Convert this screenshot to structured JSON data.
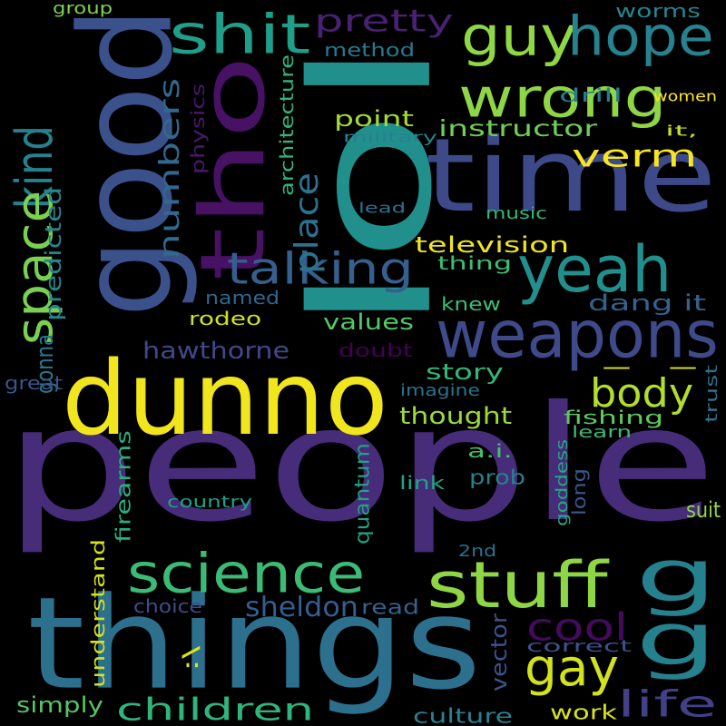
{
  "background": "#000000",
  "words": [
    {
      "id": "people",
      "text": "people",
      "color": "#472c7a"
    },
    {
      "id": "things",
      "text": "things",
      "color": "#2d708e"
    },
    {
      "id": "dunno",
      "text": "dunno",
      "color": "#f1e51d"
    },
    {
      "id": "lol",
      "text": "lol",
      "color": "#21908d"
    },
    {
      "id": "good",
      "text": "good",
      "color": "#3b518b"
    },
    {
      "id": "time",
      "text": "time",
      "color": "#3e4989"
    },
    {
      "id": "tho",
      "text": "tho",
      "color": "#471164"
    },
    {
      "id": "weapons",
      "text": "weapons",
      "color": "#3e4a89"
    },
    {
      "id": "yeah",
      "text": "yeah",
      "color": "#218f8d"
    },
    {
      "id": "stuff",
      "text": "stuff",
      "color": "#8ed645"
    },
    {
      "id": "science",
      "text": "science",
      "color": "#3bbb75"
    },
    {
      "id": "wrong",
      "text": "wrong",
      "color": "#8ed645"
    },
    {
      "id": "guy",
      "text": "guy",
      "color": "#8fd744"
    },
    {
      "id": "hope",
      "text": "hope",
      "color": "#26828e"
    },
    {
      "id": "shit",
      "text": "shit",
      "color": "#1f9e89"
    },
    {
      "id": "kind",
      "text": "kind",
      "color": "#27808e"
    },
    {
      "id": "space",
      "text": "space",
      "color": "#7ad151"
    },
    {
      "id": "gay",
      "text": "gay",
      "color": "#d2e21b"
    },
    {
      "id": "cool",
      "text": "cool",
      "color": "#450a5c"
    },
    {
      "id": "life",
      "text": "life",
      "color": "#424086"
    },
    {
      "id": "children",
      "text": "children",
      "color": "#2fb47c"
    },
    {
      "id": "talking",
      "text": "talking",
      "color": "#355f8d"
    },
    {
      "id": "body",
      "text": "body",
      "color": "#b2dd2d"
    },
    {
      "id": "pretty",
      "text": "pretty",
      "color": "#482173"
    },
    {
      "id": "place",
      "text": "place",
      "color": "#2c728e"
    },
    {
      "id": "numbers",
      "text": "numbers",
      "color": "#30688e"
    },
    {
      "id": "verm",
      "text": "verm",
      "color": "#f8e621"
    },
    {
      "id": "g-1",
      "text": "g",
      "color": "#26818e"
    },
    {
      "id": "g-2",
      "text": "g",
      "color": "#26818e"
    },
    {
      "id": "dash",
      "text": "- -",
      "color": "#dfe318"
    },
    {
      "id": "dang-it",
      "text": "dang it",
      "color": "#33628d"
    },
    {
      "id": "instructor",
      "text": "instructor",
      "color": "#6ece58"
    },
    {
      "id": "hawthorne",
      "text": "hawthorne",
      "color": "#3e4989"
    },
    {
      "id": "television",
      "text": "television",
      "color": "#f1e51d"
    },
    {
      "id": "sheldon",
      "text": "sheldon",
      "color": "#355e8d"
    },
    {
      "id": "point",
      "text": "point",
      "color": "#a2da37"
    },
    {
      "id": "values",
      "text": "values",
      "color": "#55c667"
    },
    {
      "id": "story",
      "text": "story",
      "color": "#35b779"
    },
    {
      "id": "thought",
      "text": "thought",
      "color": "#9bd93c"
    },
    {
      "id": "suit",
      "text": "suit",
      "color": "#8ed645"
    },
    {
      "id": "long",
      "text": "long",
      "color": "#38598c"
    },
    {
      "id": "understand",
      "text": "understand",
      "color": "#d2e21b"
    },
    {
      "id": "firearms",
      "text": "firearms",
      "color": "#29af7f"
    },
    {
      "id": "simply",
      "text": "simply",
      "color": "#54c568"
    },
    {
      "id": "culture",
      "text": "culture",
      "color": "#26818e"
    },
    {
      "id": "work",
      "text": "work",
      "color": "#d8e219"
    },
    {
      "id": "worms",
      "text": "worms",
      "color": "#25858e"
    },
    {
      "id": "method",
      "text": "method",
      "color": "#2a788e"
    },
    {
      "id": "drill",
      "text": "drill",
      "color": "#297b8e"
    },
    {
      "id": "women",
      "text": "women",
      "color": "#fde725"
    },
    {
      "id": "group",
      "text": "group",
      "color": "#7fd34e"
    },
    {
      "id": "it-comma",
      "text": "it,",
      "color": "#c5e021"
    },
    {
      "id": "physics",
      "text": "physics",
      "color": "#48186a"
    },
    {
      "id": "architecture",
      "text": "architecture",
      "color": "#31b57b"
    },
    {
      "id": "military",
      "text": "military",
      "color": "#27808e"
    },
    {
      "id": "lead",
      "text": "lead",
      "color": "#2d718e"
    },
    {
      "id": "music",
      "text": "music",
      "color": "#35b779"
    },
    {
      "id": "thing",
      "text": "thing",
      "color": "#3dbc74"
    },
    {
      "id": "knew",
      "text": "knew",
      "color": "#3dbc74"
    },
    {
      "id": "named",
      "text": "named",
      "color": "#31668e"
    },
    {
      "id": "rodeo",
      "text": "rodeo",
      "color": "#d2e21b"
    },
    {
      "id": "doubt",
      "text": "doubt",
      "color": "#440154"
    },
    {
      "id": "gonna",
      "text": "gonna",
      "color": "#2a778e"
    },
    {
      "id": "predicted",
      "text": "predicted",
      "color": "#24878e"
    },
    {
      "id": "great",
      "text": "great",
      "color": "#3a548c"
    },
    {
      "id": "imagine",
      "text": "imagine",
      "color": "#2c738e"
    },
    {
      "id": "trust",
      "text": "trust",
      "color": "#2c728e"
    },
    {
      "id": "fishing",
      "text": "fishing",
      "color": "#5ec962"
    },
    {
      "id": "learn",
      "text": "learn",
      "color": "#3bbb75"
    },
    {
      "id": "a-i",
      "text": "a.i.",
      "color": "#44bf70"
    },
    {
      "id": "goddess",
      "text": "goddess",
      "color": "#22a884"
    },
    {
      "id": "prob",
      "text": "prob",
      "color": "#26828e"
    },
    {
      "id": "link",
      "text": "link",
      "color": "#20a486"
    },
    {
      "id": "quantum",
      "text": "quantum",
      "color": "#20a386"
    },
    {
      "id": "country",
      "text": "country",
      "color": "#1fa088"
    },
    {
      "id": "2nd",
      "text": "2nd",
      "color": "#2c718e"
    },
    {
      "id": "vector",
      "text": "vector",
      "color": "#3b528b"
    },
    {
      "id": "choice",
      "text": "choice",
      "color": "#3e4c8a"
    },
    {
      "id": "read",
      "text": "read",
      "color": "#33628d"
    },
    {
      "id": "correct",
      "text": "correct",
      "color": "#3a538b"
    },
    {
      "id": "colon-emote",
      "text": ":\\",
      "color": "#dde318"
    }
  ]
}
